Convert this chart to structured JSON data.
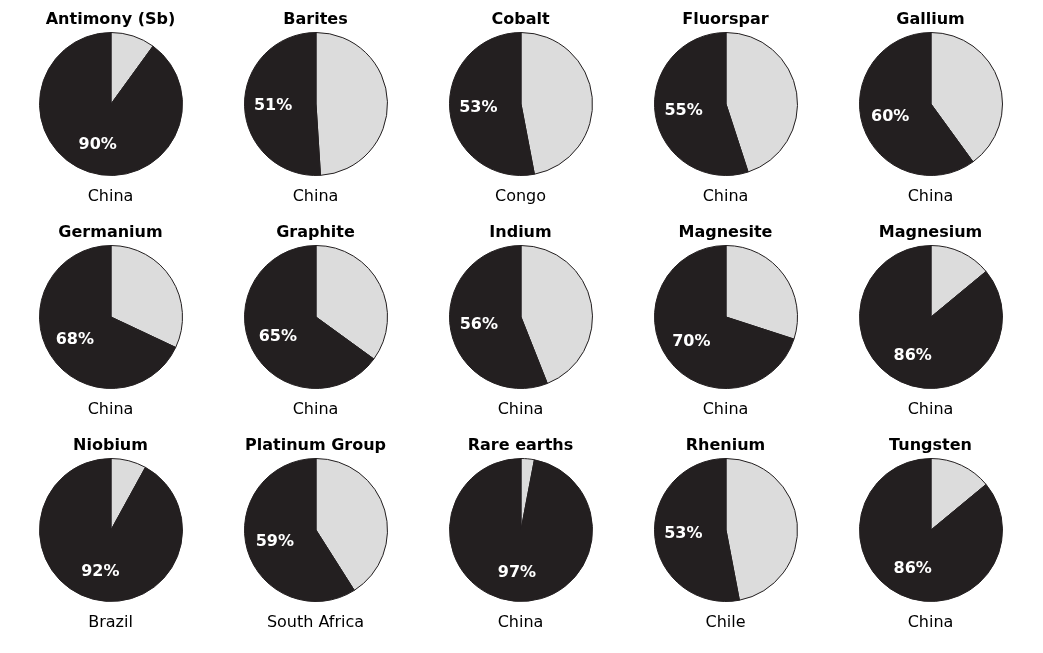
{
  "chart_data": [
    {
      "type": "pie",
      "title": "Antimony (Sb)",
      "categories": [
        null,
        "China"
      ],
      "values": [
        10,
        90
      ],
      "value_labels": [
        null,
        "90%"
      ],
      "colors": [
        "#dcdcdc",
        "#231f20"
      ]
    },
    {
      "type": "pie",
      "title": "Barites",
      "categories": [
        null,
        "China"
      ],
      "values": [
        49,
        51
      ],
      "value_labels": [
        null,
        "51%"
      ],
      "colors": [
        "#dcdcdc",
        "#231f20"
      ]
    },
    {
      "type": "pie",
      "title": "Cobalt",
      "categories": [
        null,
        "Congo"
      ],
      "values": [
        47,
        53
      ],
      "value_labels": [
        null,
        "53%"
      ],
      "colors": [
        "#dcdcdc",
        "#231f20"
      ]
    },
    {
      "type": "pie",
      "title": "Fluorspar",
      "categories": [
        null,
        "China"
      ],
      "values": [
        45,
        55
      ],
      "value_labels": [
        null,
        "55%"
      ],
      "colors": [
        "#dcdcdc",
        "#231f20"
      ]
    },
    {
      "type": "pie",
      "title": "Gallium",
      "categories": [
        null,
        "China"
      ],
      "values": [
        40,
        60
      ],
      "value_labels": [
        null,
        "60%"
      ],
      "colors": [
        "#dcdcdc",
        "#231f20"
      ]
    },
    {
      "type": "pie",
      "title": "Germanium",
      "categories": [
        null,
        "China"
      ],
      "values": [
        32,
        68
      ],
      "value_labels": [
        null,
        "68%"
      ],
      "colors": [
        "#dcdcdc",
        "#231f20"
      ]
    },
    {
      "type": "pie",
      "title": "Graphite",
      "categories": [
        null,
        "China"
      ],
      "values": [
        35,
        65
      ],
      "value_labels": [
        null,
        "65%"
      ],
      "colors": [
        "#dcdcdc",
        "#231f20"
      ]
    },
    {
      "type": "pie",
      "title": "Indium",
      "categories": [
        null,
        "China"
      ],
      "values": [
        44,
        56
      ],
      "value_labels": [
        null,
        "56%"
      ],
      "colors": [
        "#dcdcdc",
        "#231f20"
      ]
    },
    {
      "type": "pie",
      "title": "Magnesite",
      "categories": [
        null,
        "China"
      ],
      "values": [
        30,
        70
      ],
      "value_labels": [
        null,
        "70%"
      ],
      "colors": [
        "#dcdcdc",
        "#231f20"
      ]
    },
    {
      "type": "pie",
      "title": "Magnesium",
      "categories": [
        null,
        "China"
      ],
      "values": [
        14,
        86
      ],
      "value_labels": [
        null,
        "86%"
      ],
      "colors": [
        "#dcdcdc",
        "#231f20"
      ]
    },
    {
      "type": "pie",
      "title": "Niobium",
      "categories": [
        null,
        "Brazil"
      ],
      "values": [
        8,
        92
      ],
      "value_labels": [
        null,
        "92%"
      ],
      "colors": [
        "#dcdcdc",
        "#231f20"
      ]
    },
    {
      "type": "pie",
      "title": "Platinum Group",
      "categories": [
        null,
        "South Africa"
      ],
      "values": [
        41,
        59
      ],
      "value_labels": [
        null,
        "59%"
      ],
      "colors": [
        "#dcdcdc",
        "#231f20"
      ]
    },
    {
      "type": "pie",
      "title": "Rare earths",
      "categories": [
        null,
        "China"
      ],
      "values": [
        3,
        97
      ],
      "value_labels": [
        null,
        "97%"
      ],
      "colors": [
        "#dcdcdc",
        "#231f20"
      ]
    },
    {
      "type": "pie",
      "title": "Rhenium",
      "categories": [
        null,
        "Chile"
      ],
      "values": [
        47,
        53
      ],
      "value_labels": [
        null,
        "53%"
      ],
      "colors": [
        "#dcdcdc",
        "#231f20"
      ]
    },
    {
      "type": "pie",
      "title": "Tungsten",
      "categories": [
        null,
        "China"
      ],
      "values": [
        14,
        86
      ],
      "value_labels": [
        null,
        "86%"
      ],
      "colors": [
        "#dcdcdc",
        "#231f20"
      ]
    }
  ]
}
